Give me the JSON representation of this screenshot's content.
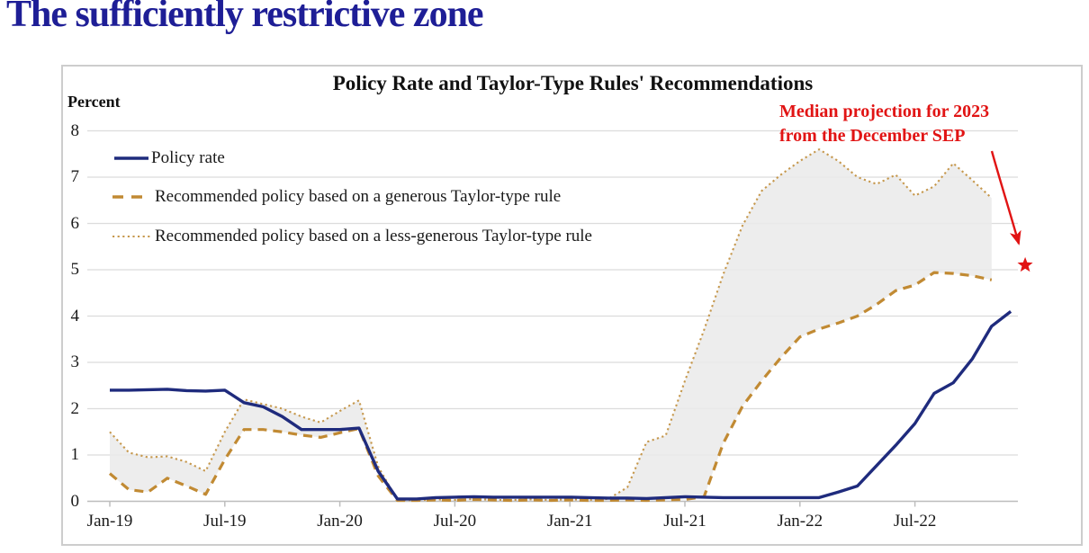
{
  "page": {
    "title": "The sufficiently restrictive zone"
  },
  "chart_data": {
    "type": "line",
    "title": "Policy Rate and Taylor-Type Rules' Recommendations",
    "xlabel": "",
    "ylabel": "Percent",
    "ylim": [
      0,
      8
    ],
    "y_ticks": [
      0,
      1,
      2,
      3,
      4,
      5,
      6,
      7,
      8
    ],
    "grid": "horizontal",
    "legend_position": "upper-left-inside",
    "x_tick_indices": [
      0,
      6,
      12,
      18,
      24,
      30,
      36,
      42
    ],
    "x_tick_labels": [
      "Jan-19",
      "Jul-19",
      "Jan-20",
      "Jul-20",
      "Jan-21",
      "Jul-21",
      "Jan-22",
      "Jul-22"
    ],
    "months": [
      "Jan-19",
      "Feb-19",
      "Mar-19",
      "Apr-19",
      "May-19",
      "Jun-19",
      "Jul-19",
      "Aug-19",
      "Sep-19",
      "Oct-19",
      "Nov-19",
      "Dec-19",
      "Jan-20",
      "Feb-20",
      "Mar-20",
      "Apr-20",
      "May-20",
      "Jun-20",
      "Jul-20",
      "Aug-20",
      "Sep-20",
      "Oct-20",
      "Nov-20",
      "Dec-20",
      "Jan-21",
      "Feb-21",
      "Mar-21",
      "Apr-21",
      "May-21",
      "Jun-21",
      "Jul-21",
      "Aug-21",
      "Sep-21",
      "Oct-21",
      "Nov-21",
      "Dec-21",
      "Jan-22",
      "Feb-22",
      "Mar-22",
      "Apr-22",
      "May-22",
      "Jun-22",
      "Jul-22",
      "Aug-22",
      "Sep-22",
      "Oct-22",
      "Nov-22",
      "Dec-22"
    ],
    "series": [
      {
        "name": "Policy rate",
        "style": "solid",
        "color": "#1f2b7d",
        "values": [
          2.4,
          2.4,
          2.41,
          2.42,
          2.39,
          2.38,
          2.4,
          2.13,
          2.04,
          1.83,
          1.55,
          1.55,
          1.55,
          1.58,
          0.65,
          0.05,
          0.05,
          0.08,
          0.09,
          0.1,
          0.09,
          0.09,
          0.09,
          0.09,
          0.09,
          0.08,
          0.07,
          0.07,
          0.06,
          0.08,
          0.1,
          0.09,
          0.08,
          0.08,
          0.08,
          0.08,
          0.08,
          0.08,
          0.2,
          0.33,
          0.77,
          1.21,
          1.68,
          2.33,
          2.56,
          3.08,
          3.78,
          4.1
        ]
      },
      {
        "name": "Recommended policy based on a generous Taylor-type rule",
        "style": "dashed",
        "color": "#c18a33",
        "values": [
          0.6,
          0.25,
          0.2,
          0.5,
          0.33,
          0.15,
          0.9,
          1.55,
          1.55,
          1.5,
          1.43,
          1.38,
          1.48,
          1.57,
          0.55,
          0.02,
          0.02,
          0.03,
          0.02,
          0.04,
          0.03,
          0.02,
          0.03,
          0.02,
          0.03,
          0.02,
          0.02,
          0.03,
          0.02,
          0.03,
          0.04,
          0.1,
          1.25,
          2.05,
          2.6,
          3.1,
          3.55,
          3.72,
          3.85,
          4.0,
          4.25,
          4.55,
          4.67,
          4.94,
          4.92,
          4.87,
          4.78
        ]
      },
      {
        "name": "Recommended policy based on a less-generous Taylor-type rule",
        "style": "dotted",
        "color": "#c6984d",
        "values": [
          1.5,
          1.05,
          0.95,
          0.97,
          0.85,
          0.65,
          1.5,
          2.2,
          2.1,
          2.0,
          1.83,
          1.7,
          1.95,
          2.18,
          0.75,
          0.03,
          0.02,
          0.04,
          0.03,
          0.05,
          0.03,
          0.03,
          0.04,
          0.03,
          0.04,
          0.03,
          0.05,
          0.3,
          1.28,
          1.42,
          2.6,
          3.7,
          4.9,
          5.95,
          6.7,
          7.05,
          7.35,
          7.6,
          7.35,
          7.0,
          6.85,
          7.05,
          6.6,
          6.8,
          7.3,
          6.93,
          6.55
        ]
      }
    ],
    "shaded_band": {
      "between": [
        "Recommended policy based on a generous Taylor-type rule",
        "Recommended policy based on a less-generous Taylor-type rule"
      ],
      "color": "#ebebeb"
    },
    "annotation": {
      "line1": "Median projection for 2023",
      "line2": "from the December SEP",
      "marker": "star",
      "value": 5.1,
      "month_index": 47.75
    },
    "colors": {
      "page_title": "#1e1e96",
      "annotation_red": "#e11414",
      "gridline": "#dcdcdc",
      "axis": "#bdbdbd",
      "card_border": "#cdcdcd"
    }
  }
}
